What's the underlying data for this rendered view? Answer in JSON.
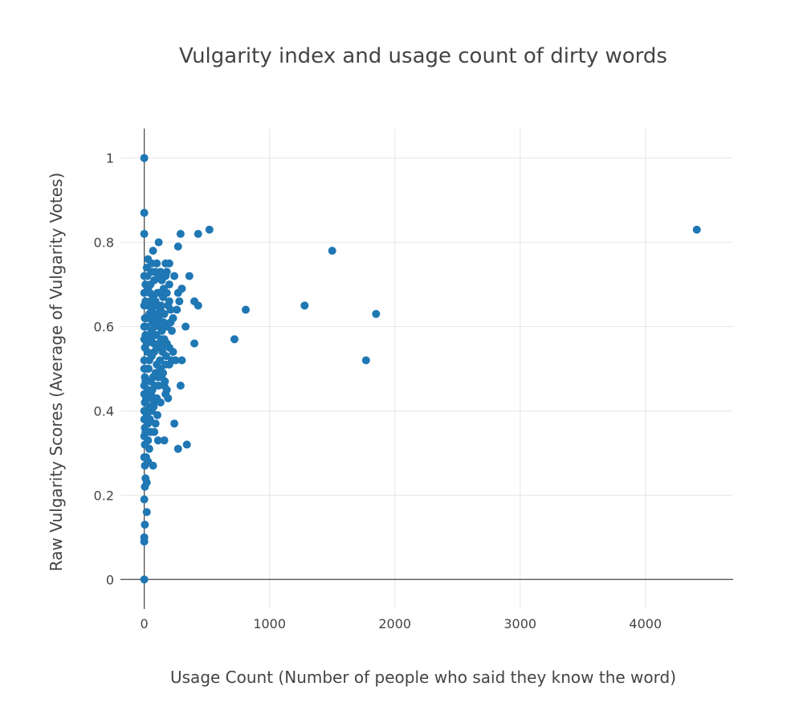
{
  "chart_data": {
    "type": "scatter",
    "title": "Vulgarity index and usage count of dirty words",
    "xlabel": "Usage Count (Number of people who said they know the word)",
    "ylabel": "Raw Vulgarity Scores (Average of Vulgarity Votes)",
    "xlim": [
      -190,
      4700
    ],
    "ylim": [
      -0.07,
      1.07
    ],
    "xticks": [
      0,
      1000,
      2000,
      3000,
      4000
    ],
    "xtick_labels": [
      "0",
      "1000",
      "2000",
      "3000",
      "4000"
    ],
    "yticks": [
      0,
      0.2,
      0.4,
      0.6,
      0.8,
      1
    ],
    "ytick_labels": [
      "0",
      "0.2",
      "0.4",
      "0.6",
      "0.8",
      "1"
    ],
    "grid": true,
    "color": "#1f77b4",
    "series": [
      {
        "points": [
          [
            4410,
            0.83
          ],
          [
            1500,
            0.78
          ],
          [
            1850,
            0.63
          ],
          [
            1770,
            0.52
          ],
          [
            1280,
            0.65
          ],
          [
            810,
            0.64
          ],
          [
            720,
            0.57
          ],
          [
            520,
            0.83
          ],
          [
            430,
            0.82
          ],
          [
            290,
            0.82
          ],
          [
            270,
            0.79
          ],
          [
            115,
            0.8
          ],
          [
            70,
            0.78
          ],
          [
            30,
            0.76
          ],
          [
            0,
            1.0
          ],
          [
            0,
            0.87
          ],
          [
            0,
            0.82
          ],
          [
            0,
            0.72
          ],
          [
            10,
            0.7
          ],
          [
            0,
            0.68
          ],
          [
            0,
            0.65
          ],
          [
            5,
            0.62
          ],
          [
            0,
            0.6
          ],
          [
            0,
            0.57
          ],
          [
            5,
            0.55
          ],
          [
            0,
            0.52
          ],
          [
            0,
            0.5
          ],
          [
            5,
            0.48
          ],
          [
            0,
            0.46
          ],
          [
            0,
            0.44
          ],
          [
            5,
            0.42
          ],
          [
            0,
            0.4
          ],
          [
            0,
            0.38
          ],
          [
            5,
            0.36
          ],
          [
            0,
            0.34
          ],
          [
            5,
            0.32
          ],
          [
            0,
            0.29
          ],
          [
            5,
            0.27
          ],
          [
            10,
            0.24
          ],
          [
            5,
            0.22
          ],
          [
            0,
            0.19
          ],
          [
            20,
            0.16
          ],
          [
            5,
            0.13
          ],
          [
            0,
            0.1
          ],
          [
            0,
            0.09
          ],
          [
            0,
            0.0
          ],
          [
            20,
            0.23
          ],
          [
            15,
            0.29
          ],
          [
            30,
            0.28
          ],
          [
            70,
            0.27
          ],
          [
            40,
            0.31
          ],
          [
            30,
            0.33
          ],
          [
            50,
            0.35
          ],
          [
            80,
            0.35
          ],
          [
            90,
            0.37
          ],
          [
            110,
            0.33
          ],
          [
            160,
            0.33
          ],
          [
            240,
            0.37
          ],
          [
            270,
            0.31
          ],
          [
            340,
            0.32
          ],
          [
            20,
            0.39
          ],
          [
            40,
            0.41
          ],
          [
            60,
            0.4
          ],
          [
            80,
            0.42
          ],
          [
            100,
            0.43
          ],
          [
            130,
            0.42
          ],
          [
            170,
            0.44
          ],
          [
            180,
            0.45
          ],
          [
            160,
            0.46
          ],
          [
            290,
            0.46
          ],
          [
            30,
            0.45
          ],
          [
            50,
            0.47
          ],
          [
            70,
            0.48
          ],
          [
            90,
            0.49
          ],
          [
            110,
            0.48
          ],
          [
            130,
            0.5
          ],
          [
            150,
            0.49
          ],
          [
            170,
            0.51
          ],
          [
            200,
            0.51
          ],
          [
            220,
            0.52
          ],
          [
            250,
            0.52
          ],
          [
            300,
            0.52
          ],
          [
            20,
            0.5
          ],
          [
            40,
            0.52
          ],
          [
            60,
            0.53
          ],
          [
            80,
            0.54
          ],
          [
            100,
            0.55
          ],
          [
            120,
            0.56
          ],
          [
            140,
            0.55
          ],
          [
            160,
            0.57
          ],
          [
            180,
            0.56
          ],
          [
            200,
            0.55
          ],
          [
            230,
            0.54
          ],
          [
            20,
            0.56
          ],
          [
            40,
            0.58
          ],
          [
            60,
            0.59
          ],
          [
            80,
            0.6
          ],
          [
            100,
            0.61
          ],
          [
            120,
            0.6
          ],
          [
            140,
            0.59
          ],
          [
            180,
            0.6
          ],
          [
            220,
            0.59
          ],
          [
            330,
            0.6
          ],
          [
            400,
            0.56
          ],
          [
            20,
            0.62
          ],
          [
            40,
            0.63
          ],
          [
            60,
            0.64
          ],
          [
            80,
            0.62
          ],
          [
            100,
            0.63
          ],
          [
            130,
            0.64
          ],
          [
            160,
            0.63
          ],
          [
            190,
            0.65
          ],
          [
            210,
            0.64
          ],
          [
            230,
            0.62
          ],
          [
            260,
            0.64
          ],
          [
            30,
            0.65
          ],
          [
            50,
            0.66
          ],
          [
            70,
            0.67
          ],
          [
            90,
            0.66
          ],
          [
            120,
            0.68
          ],
          [
            150,
            0.67
          ],
          [
            180,
            0.68
          ],
          [
            200,
            0.66
          ],
          [
            280,
            0.66
          ],
          [
            400,
            0.66
          ],
          [
            430,
            0.65
          ],
          [
            30,
            0.69
          ],
          [
            50,
            0.7
          ],
          [
            80,
            0.71
          ],
          [
            110,
            0.72
          ],
          [
            140,
            0.71
          ],
          [
            170,
            0.72
          ],
          [
            200,
            0.7
          ],
          [
            240,
            0.72
          ],
          [
            270,
            0.68
          ],
          [
            300,
            0.69
          ],
          [
            360,
            0.72
          ],
          [
            60,
            0.73
          ],
          [
            90,
            0.73
          ],
          [
            130,
            0.73
          ],
          [
            180,
            0.73
          ],
          [
            20,
            0.74
          ],
          [
            60,
            0.75
          ],
          [
            100,
            0.75
          ],
          [
            170,
            0.75
          ],
          [
            200,
            0.75
          ],
          [
            10,
            0.66
          ],
          [
            15,
            0.6
          ],
          [
            10,
            0.58
          ],
          [
            25,
            0.54
          ],
          [
            10,
            0.47
          ],
          [
            15,
            0.43
          ],
          [
            10,
            0.35
          ],
          [
            30,
            0.37
          ],
          [
            45,
            0.43
          ],
          [
            65,
            0.45
          ],
          [
            85,
            0.46
          ],
          [
            100,
            0.51
          ],
          [
            125,
            0.52
          ],
          [
            140,
            0.48
          ],
          [
            55,
            0.57
          ],
          [
            75,
            0.56
          ],
          [
            95,
            0.58
          ],
          [
            115,
            0.62
          ],
          [
            135,
            0.65
          ],
          [
            155,
            0.69
          ],
          [
            210,
            0.61
          ],
          [
            45,
            0.68
          ],
          [
            25,
            0.72
          ],
          [
            65,
            0.61
          ],
          [
            85,
            0.65
          ],
          [
            105,
            0.68
          ],
          [
            145,
            0.54
          ],
          [
            165,
            0.47
          ],
          [
            190,
            0.43
          ],
          [
            105,
            0.39
          ],
          [
            75,
            0.41
          ],
          [
            35,
            0.5
          ],
          [
            55,
            0.44
          ],
          [
            25,
            0.4
          ],
          [
            45,
            0.38
          ],
          [
            115,
            0.46
          ],
          [
            135,
            0.57
          ],
          [
            155,
            0.61
          ],
          [
            175,
            0.53
          ]
        ]
      }
    ]
  }
}
